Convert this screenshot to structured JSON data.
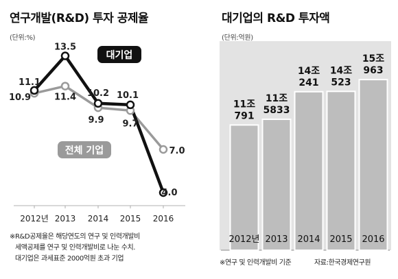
{
  "left": {
    "title": "연구개발(R&D) 투자 공제율",
    "unit": "(단위:%)",
    "notes": [
      "※R&D공제율은 해당연도의 연구 및 인력개발비",
      "세액공제를 연구 및 인력개발비로 나눈 수치.",
      "대기업은 과세표준 2000억원 초과 기업"
    ]
  },
  "right": {
    "title": "대기업의 R&D 투자액",
    "unit": "(단위:억원)",
    "footnote": "※연구 및 인력개발비 기준",
    "source": "자료:한국경제연구원"
  },
  "chart_data": [
    {
      "type": "line",
      "title": "연구개발(R&D) 투자 공제율",
      "unit": "%",
      "categories": [
        "2012년",
        "2013",
        "2014",
        "2015",
        "2016"
      ],
      "series": [
        {
          "name": "대기업",
          "values": [
            11.1,
            13.5,
            10.2,
            10.1,
            4.0
          ],
          "labels": [
            "11.1",
            "13.5",
            "10.2",
            "10.1",
            "4.0"
          ],
          "color": "#111111"
        },
        {
          "name": "전체 기업",
          "values": [
            10.9,
            11.4,
            9.9,
            9.7,
            7.0
          ],
          "labels": [
            "10.9",
            "11.4",
            "9.9",
            "9.7",
            "7.0"
          ],
          "color": "#9a9a9a"
        }
      ],
      "ylim": [
        3,
        15
      ],
      "grid": false
    },
    {
      "type": "bar",
      "title": "대기업의 R&D 투자액",
      "unit": "억원",
      "categories": [
        "2012년",
        "2013",
        "2014",
        "2015",
        "2016"
      ],
      "values": [
        110791,
        115833,
        140241,
        140523,
        150963
      ],
      "labels": [
        [
          "11조",
          "791"
        ],
        [
          "11조",
          "5833"
        ],
        [
          "14조",
          "241"
        ],
        [
          "14조",
          "523"
        ],
        [
          "15조",
          "963"
        ]
      ],
      "bar_color": "#bdbdbd",
      "ylim": [
        0,
        185000
      ]
    }
  ]
}
